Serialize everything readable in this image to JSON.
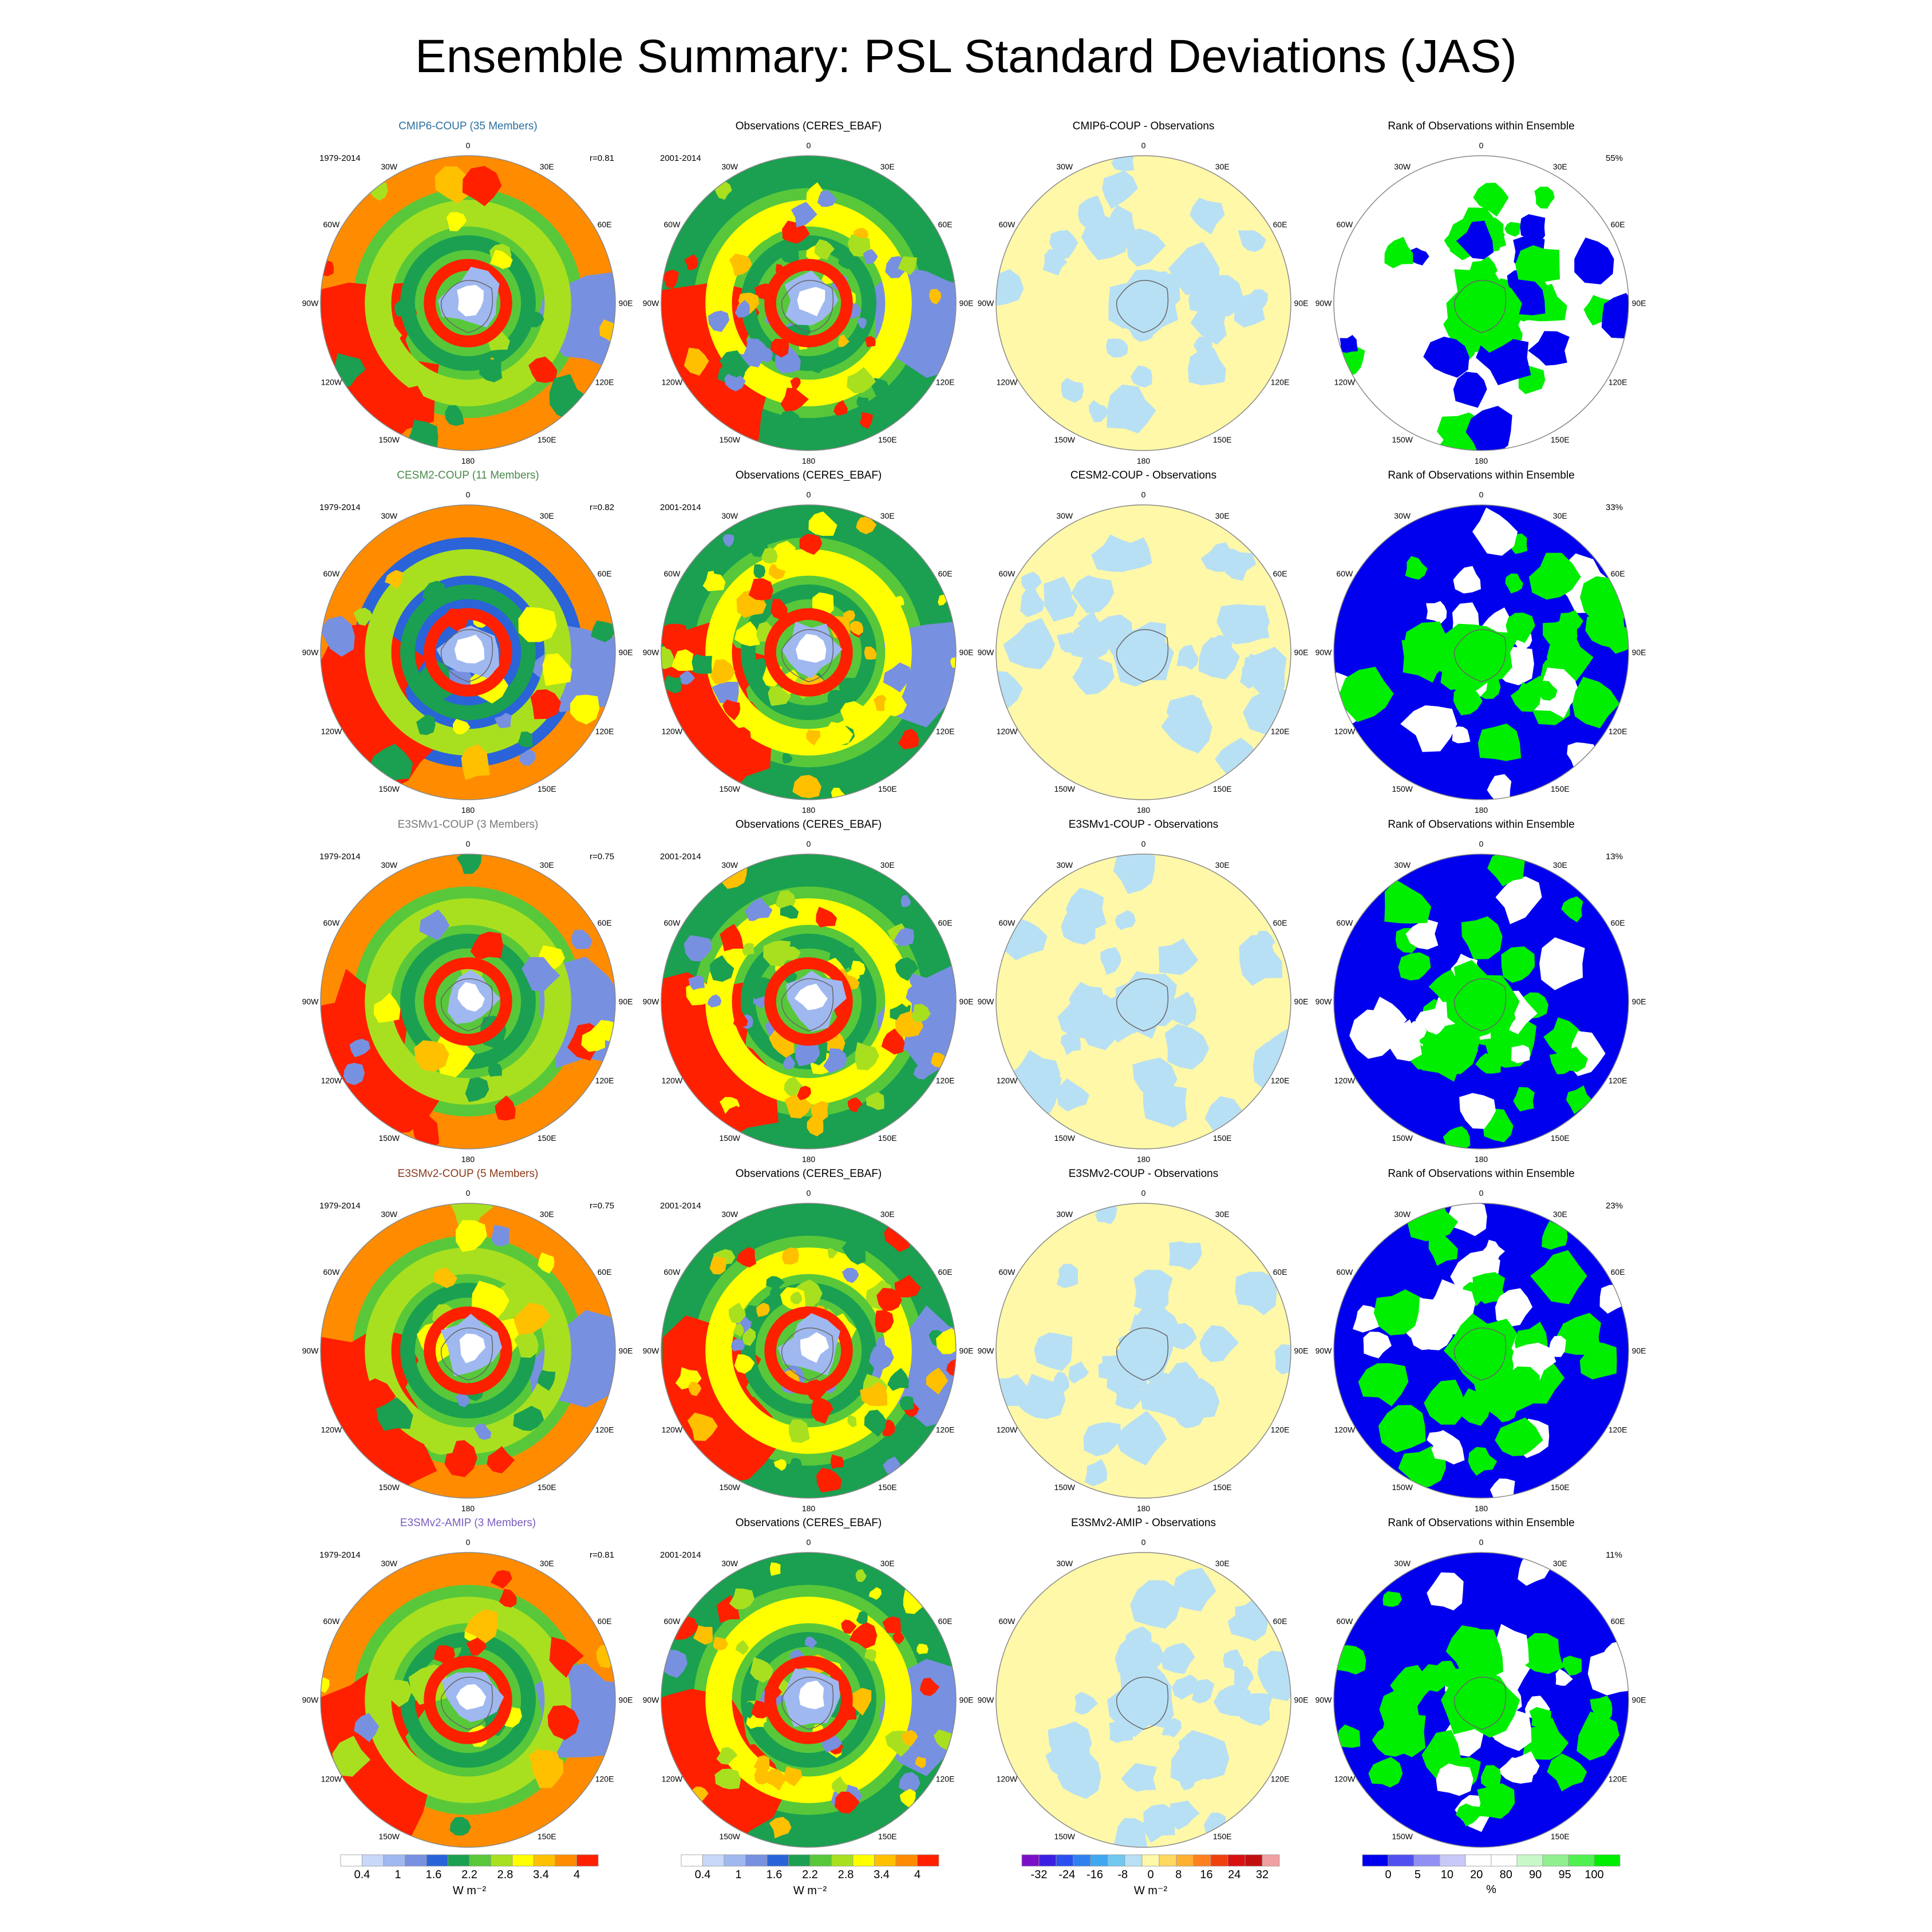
{
  "title": "Ensemble Summary: PSL Standard Deviations (JAS)",
  "lon_labels": [
    "0",
    "30E",
    "60E",
    "90E",
    "120E",
    "150E",
    "180",
    "150W",
    "120W",
    "90W",
    "60W",
    "30W"
  ],
  "rows": [
    {
      "model_title": "CMIP6-COUP (35 Members)",
      "model_color": "#2b6f9e",
      "period": "1979-2014",
      "r": "r=0.81",
      "obs_title": "Observations (CERES_EBAF)",
      "obs_period": "2001-2014",
      "diff_title": "CMIP6-COUP - Observations",
      "rank_title": "Rank of Observations within Ensemble",
      "rank_pct": "55%"
    },
    {
      "model_title": "CESM2-COUP (11 Members)",
      "model_color": "#4a8a4a",
      "period": "1979-2014",
      "r": "r=0.82",
      "obs_title": "Observations (CERES_EBAF)",
      "obs_period": "2001-2014",
      "diff_title": "CESM2-COUP - Observations",
      "rank_title": "Rank of Observations within Ensemble",
      "rank_pct": "33%"
    },
    {
      "model_title": "E3SMv1-COUP (3 Members)",
      "model_color": "#777777",
      "period": "1979-2014",
      "r": "r=0.75",
      "obs_title": "Observations (CERES_EBAF)",
      "obs_period": "2001-2014",
      "diff_title": "E3SMv1-COUP - Observations",
      "rank_title": "Rank of Observations within Ensemble",
      "rank_pct": "13%"
    },
    {
      "model_title": "E3SMv2-COUP (5 Members)",
      "model_color": "#8a3a1a",
      "period": "1979-2014",
      "r": "r=0.75",
      "obs_title": "Observations (CERES_EBAF)",
      "obs_period": "2001-2014",
      "diff_title": "E3SMv2-COUP - Observations",
      "rank_title": "Rank of Observations within Ensemble",
      "rank_pct": "23%"
    },
    {
      "model_title": "E3SMv2-AMIP (3 Members)",
      "model_color": "#7a5cc0",
      "period": "1979-2014",
      "r": "r=0.81",
      "obs_title": "Observations (CERES_EBAF)",
      "obs_period": "2001-2014",
      "diff_title": "E3SMv2-AMIP - Observations",
      "rank_title": "Rank of Observations within Ensemble",
      "rank_pct": "11%"
    }
  ],
  "colorbars": [
    {
      "name": "std",
      "unit": "W m⁻²",
      "colors": [
        "#ffffff",
        "#c8d8f8",
        "#a0b8f0",
        "#7890e0",
        "#2a64d8",
        "#1aa050",
        "#58c83a",
        "#a8e020",
        "#ffff00",
        "#ffc000",
        "#ff8c00",
        "#ff2000"
      ],
      "labels": [
        "0.4",
        "1",
        "1.6",
        "2.2",
        "2.8",
        "3.4",
        "4"
      ]
    },
    {
      "name": "std-obs",
      "unit": "W m⁻²",
      "colors": [
        "#ffffff",
        "#c8d8f8",
        "#a0b8f0",
        "#7890e0",
        "#2a64d8",
        "#1aa050",
        "#58c83a",
        "#a8e020",
        "#ffff00",
        "#ffc000",
        "#ff8c00",
        "#ff2000"
      ],
      "labels": [
        "0.4",
        "1",
        "1.6",
        "2.2",
        "2.8",
        "3.4",
        "4"
      ]
    },
    {
      "name": "diff",
      "unit": "W m⁻²",
      "colors": [
        "#7b10c8",
        "#3a20e0",
        "#2a50f0",
        "#3080f0",
        "#40a8f0",
        "#70c8f0",
        "#b8e0f4",
        "#fff8a8",
        "#ffd860",
        "#ffb030",
        "#ff8020",
        "#f04010",
        "#d81010",
        "#c01010",
        "#f0a0a0"
      ],
      "labels": [
        "-32",
        "-24",
        "-16",
        "-8",
        "0",
        "8",
        "16",
        "24",
        "32"
      ]
    },
    {
      "name": "rank",
      "unit": "%",
      "colors": [
        "#0000ee",
        "#5050f0",
        "#9090f4",
        "#c8c8f8",
        "#ffffff",
        "#ffffff",
        "#c8f8c8",
        "#90f090",
        "#50f050",
        "#00ee00"
      ],
      "labels": [
        "0",
        "5",
        "10",
        "20",
        "80",
        "90",
        "95",
        "100"
      ]
    }
  ]
}
